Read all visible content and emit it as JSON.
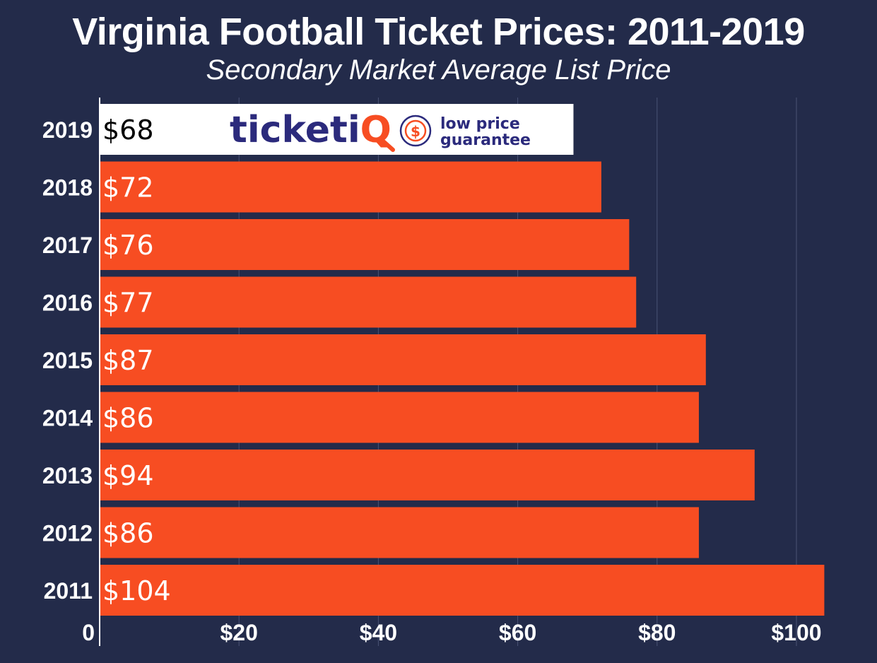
{
  "title": "Virginia Football Ticket Prices: 2011-2019",
  "subtitle": "Secondary Market Average List Price",
  "colors": {
    "background": "#232b4a",
    "bar": "#f74d22",
    "highlight_bar": "#ffffff",
    "gridline": "#4a5375",
    "text": "#ffffff",
    "logo_navy": "#2b2a7c",
    "logo_orange": "#f74d22"
  },
  "logo": {
    "brand_main": "ticketi",
    "brand_accent": "Q",
    "guarantee_line1": "low price",
    "guarantee_line2": "guarantee",
    "icon": "dollar-shield-icon"
  },
  "chart_data": {
    "type": "bar",
    "orientation": "horizontal",
    "categories": [
      "2019",
      "2018",
      "2017",
      "2016",
      "2015",
      "2014",
      "2013",
      "2012",
      "2011"
    ],
    "values": [
      68,
      72,
      76,
      77,
      87,
      86,
      94,
      86,
      104
    ],
    "data_labels": [
      "$68",
      "$72",
      "$76",
      "$77",
      "$87",
      "$86",
      "$94",
      "$86",
      "$104"
    ],
    "highlighted_category": "2019",
    "x_ticks": [
      0,
      20,
      40,
      60,
      80,
      100
    ],
    "x_tick_labels": [
      "0",
      "$20",
      "$40",
      "$60",
      "$80",
      "$100"
    ],
    "xlim": [
      0,
      107
    ],
    "grid": true
  }
}
